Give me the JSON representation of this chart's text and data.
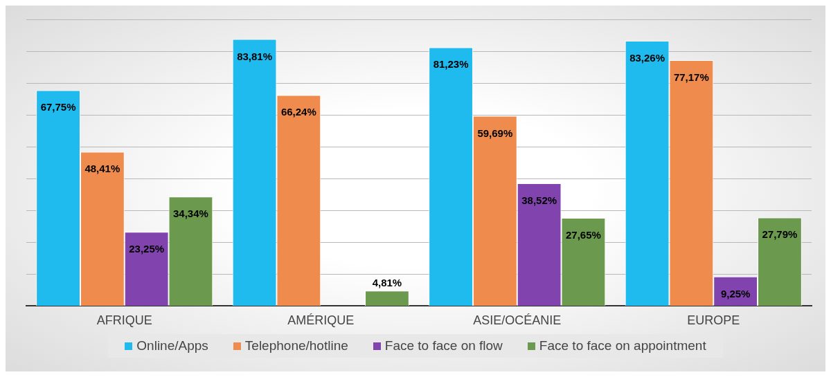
{
  "chart_data": {
    "type": "bar",
    "categories": [
      "AFRIQUE",
      "AMÉRIQUE",
      "ASIE/OCÉANIE",
      "EUROPE"
    ],
    "series": [
      {
        "name": "Online/Apps",
        "color": "#1fbaee",
        "values": [
          67.75,
          83.81,
          81.23,
          83.26
        ],
        "value_labels": [
          "67,75%",
          "83,81%",
          "81,23%",
          "83,26%"
        ]
      },
      {
        "name": "Telephone/hotline",
        "color": "#ee8b4d",
        "values": [
          48.41,
          66.24,
          59.69,
          77.17
        ],
        "value_labels": [
          "48,41%",
          "66,24%",
          "59,69%",
          "77,17%"
        ]
      },
      {
        "name": "Face to face on flow",
        "color": "#8144ae",
        "values": [
          23.25,
          null,
          38.52,
          9.25
        ],
        "value_labels": [
          "23,25%",
          null,
          "38,52%",
          "9,25%"
        ]
      },
      {
        "name": "Face to face on appointment",
        "color": "#6b9a4f",
        "values": [
          34.34,
          4.81,
          27.65,
          27.79
        ],
        "value_labels": [
          "34,34%",
          "4,81%",
          "27,65%",
          "27,79%"
        ]
      }
    ],
    "tick_labels": "x",
    "grid": "y",
    "legend": "bottom"
  }
}
